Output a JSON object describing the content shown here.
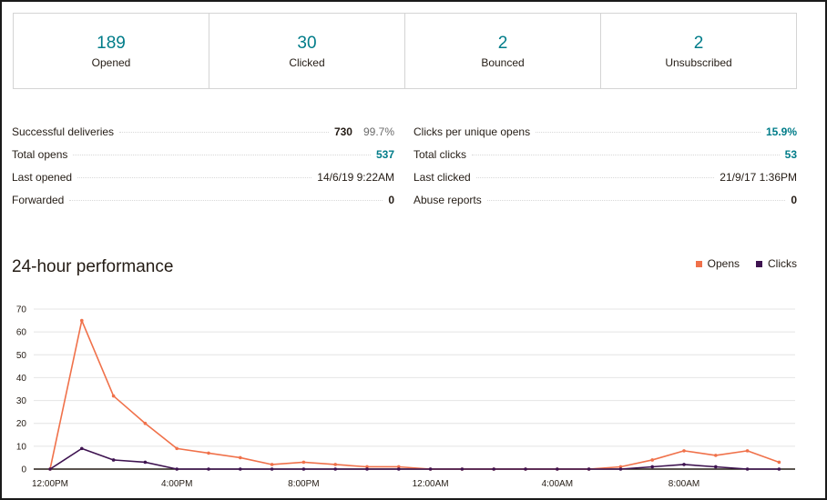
{
  "stats": [
    {
      "value": "189",
      "label": "Opened"
    },
    {
      "value": "30",
      "label": "Clicked"
    },
    {
      "value": "2",
      "label": "Bounced"
    },
    {
      "value": "2",
      "label": "Unsubscribed"
    }
  ],
  "metrics_left": [
    {
      "label": "Successful deliveries",
      "value": "730",
      "pct": "99.7%"
    },
    {
      "label": "Total opens",
      "value": "537"
    },
    {
      "label": "Last opened",
      "value": "14/6/19 9:22AM"
    },
    {
      "label": "Forwarded",
      "value": "0"
    }
  ],
  "metrics_right": [
    {
      "label": "Clicks per unique opens",
      "value": "15.9%"
    },
    {
      "label": "Total clicks",
      "value": "53"
    },
    {
      "label": "Last clicked",
      "value": "21/9/17 1:36PM"
    },
    {
      "label": "Abuse reports",
      "value": "0"
    }
  ],
  "performance": {
    "title": "24-hour performance"
  },
  "colors": {
    "opens": "#f0714a",
    "clicks": "#3e1350",
    "teal": "#007c89"
  },
  "chart_data": {
    "type": "line",
    "x": [
      "12:00PM",
      "1:00PM",
      "2:00PM",
      "3:00PM",
      "4:00PM",
      "5:00PM",
      "6:00PM",
      "7:00PM",
      "8:00PM",
      "9:00PM",
      "10:00PM",
      "11:00PM",
      "12:00AM",
      "1:00AM",
      "2:00AM",
      "3:00AM",
      "4:00AM",
      "5:00AM",
      "6:00AM",
      "7:00AM",
      "8:00AM",
      "9:00AM",
      "10:00AM",
      "11:00AM"
    ],
    "x_tick_labels": [
      "12:00PM",
      "4:00PM",
      "8:00PM",
      "12:00AM",
      "4:00AM",
      "8:00AM"
    ],
    "y_ticks": [
      0,
      10,
      20,
      30,
      40,
      50,
      60,
      70
    ],
    "ylim": [
      0,
      70
    ],
    "grid": true,
    "legend_position": "top-right",
    "series": [
      {
        "name": "Opens",
        "color": "#f0714a",
        "values": [
          0,
          65,
          32,
          20,
          9,
          7,
          5,
          2,
          3,
          2,
          1,
          1,
          0,
          0,
          0,
          0,
          0,
          0,
          1,
          4,
          8,
          6,
          8,
          3
        ]
      },
      {
        "name": "Clicks",
        "color": "#3e1350",
        "values": [
          0,
          9,
          4,
          3,
          0,
          0,
          0,
          0,
          0,
          0,
          0,
          0,
          0,
          0,
          0,
          0,
          0,
          0,
          0,
          1,
          2,
          1,
          0,
          0
        ]
      }
    ]
  }
}
